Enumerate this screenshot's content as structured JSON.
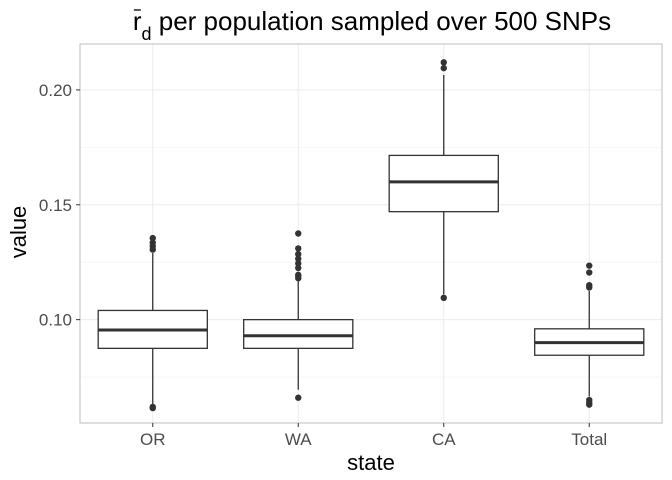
{
  "chart_data": {
    "type": "box",
    "title": "r̄d per population sampled over 500 SNPs",
    "title_parts": {
      "symbol": "r",
      "subscript": "d",
      "rest": " per population sampled over 500 SNPs"
    },
    "xlabel": "state",
    "ylabel": "value",
    "categories": [
      "OR",
      "WA",
      "CA",
      "Total"
    ],
    "ylim": [
      0.055,
      0.22
    ],
    "y_ticks": [
      0.1,
      0.15,
      0.2
    ],
    "y_tick_labels": [
      "0.10",
      "0.15",
      "0.20"
    ],
    "grid": true,
    "boxes": [
      {
        "category": "OR",
        "lower_whisker": 0.063,
        "q1": 0.0875,
        "median": 0.0955,
        "q3": 0.104,
        "upper_whisker": 0.129,
        "outliers": [
          0.0615,
          0.062,
          0.1305,
          0.132,
          0.1335,
          0.1355
        ]
      },
      {
        "category": "WA",
        "lower_whisker": 0.0695,
        "q1": 0.0875,
        "median": 0.093,
        "q3": 0.1,
        "upper_whisker": 0.117,
        "outliers": [
          0.066,
          0.118,
          0.119,
          0.1195,
          0.1225,
          0.1245,
          0.1265,
          0.1285,
          0.131,
          0.1375
        ]
      },
      {
        "category": "CA",
        "lower_whisker": 0.111,
        "q1": 0.147,
        "median": 0.16,
        "q3": 0.1715,
        "upper_whisker": 0.2065,
        "outliers": [
          0.1095,
          0.2095,
          0.212
        ]
      },
      {
        "category": "Total",
        "lower_whisker": 0.0665,
        "q1": 0.0845,
        "median": 0.09,
        "q3": 0.096,
        "upper_whisker": 0.1125,
        "outliers": [
          0.063,
          0.064,
          0.065,
          0.114,
          0.115,
          0.1205,
          0.1235
        ]
      }
    ],
    "colors": {
      "box_line": "#333333",
      "box_fill": "#ffffff",
      "grid": "#ebebeb",
      "panel_border": "#bdbdbd"
    }
  }
}
